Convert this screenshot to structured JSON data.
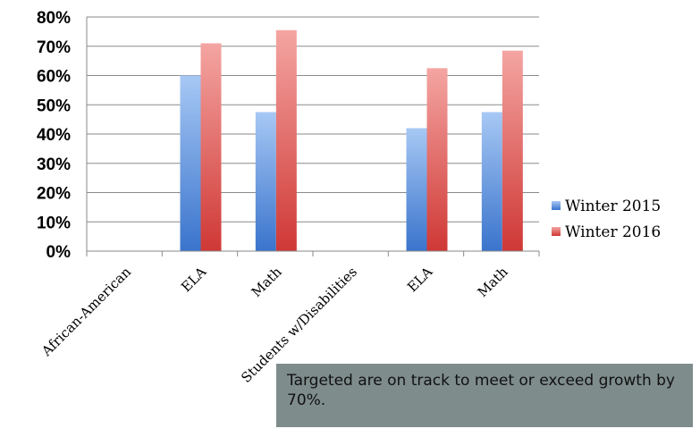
{
  "chart_data": {
    "type": "bar",
    "categories": [
      "African-American",
      "ELA",
      "Math",
      "Students w/Disabilities",
      "ELA",
      "Math"
    ],
    "series": [
      {
        "name": "Winter 2015",
        "values": [
          null,
          60,
          47.5,
          null,
          42,
          47.5
        ],
        "color": "#4a7fd0"
      },
      {
        "name": "Winter 2016",
        "values": [
          null,
          71,
          75.5,
          null,
          62.5,
          68.5
        ],
        "color": "#d94a47"
      }
    ],
    "y_tick_labels": [
      "0%",
      "10%",
      "20%",
      "30%",
      "40%",
      "50%",
      "60%",
      "70%",
      "80%"
    ],
    "ylim": [
      0,
      80
    ],
    "grid": true,
    "legend_position": "right",
    "title": "",
    "xlabel": "",
    "ylabel": ""
  },
  "note": "Targeted are on track to meet or exceed growth by 70%."
}
